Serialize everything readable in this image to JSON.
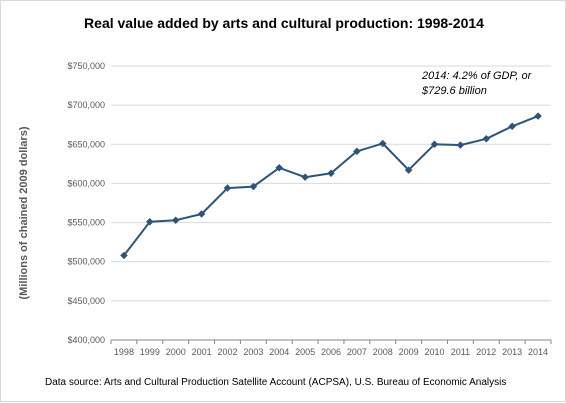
{
  "chart_data": {
    "type": "line",
    "title": "Real value added by arts and cultural production: 1998-2014",
    "ylabel": "(Millions of chained 2009 dollars)",
    "xlabel": "",
    "x": [
      "1998",
      "1999",
      "2000",
      "2001",
      "2002",
      "2003",
      "2004",
      "2005",
      "2006",
      "2007",
      "2008",
      "2009",
      "2010",
      "2011",
      "2012",
      "2013",
      "2014"
    ],
    "series": [
      {
        "values": [
          508000,
          551000,
          553000,
          561000,
          594000,
          596000,
          620000,
          608000,
          613000,
          641000,
          651000,
          617000,
          650000,
          649000,
          657000,
          673000,
          686000
        ]
      }
    ],
    "ylim": [
      400000,
      750000
    ],
    "yticks": [
      400000,
      450000,
      500000,
      550000,
      600000,
      650000,
      700000,
      750000
    ],
    "ytick_labels": [
      "$400,000",
      "$450,000",
      "$500,000",
      "$550,000",
      "$600,000",
      "$650,000",
      "$700,000",
      "$750,000"
    ],
    "grid": true,
    "legend": "none",
    "annotation": [
      "2014: 4.2% of GDP, or",
      "$729.6 billion"
    ],
    "source": "Data source:  Arts and Cultural Production  Satellite Account  (ACPSA), U.S. Bureau of Economic Analysis",
    "colors": {
      "line": "#2f5477",
      "marker": "#2f5477",
      "grid": "#d9d9d9",
      "axis": "#868686"
    }
  }
}
